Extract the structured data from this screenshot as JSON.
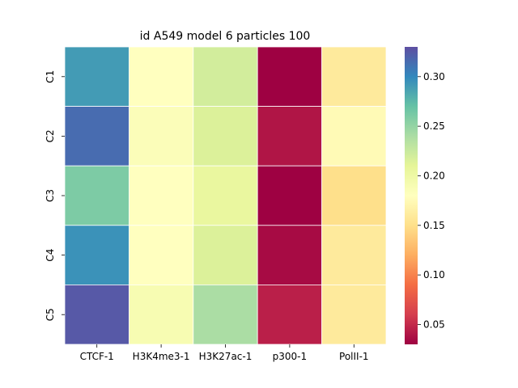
{
  "chart_data": {
    "type": "heatmap",
    "title": "id A549 model 6 particles 100",
    "xlabel": "",
    "ylabel": "",
    "x_categories": [
      "CTCF-1",
      "H3K4me3-1",
      "H3K27ac-1",
      "p300-1",
      "PolII-1"
    ],
    "y_categories": [
      "C1",
      "C2",
      "C3",
      "C4",
      "C5"
    ],
    "values": [
      [
        0.29,
        0.18,
        0.22,
        0.03,
        0.16
      ],
      [
        0.315,
        0.185,
        0.215,
        0.04,
        0.175
      ],
      [
        0.26,
        0.18,
        0.205,
        0.03,
        0.15
      ],
      [
        0.295,
        0.18,
        0.215,
        0.035,
        0.16
      ],
      [
        0.325,
        0.19,
        0.24,
        0.045,
        0.16
      ]
    ],
    "colormap": "Spectral",
    "vmin": 0.03,
    "vmax": 0.33,
    "colorbar": {
      "ticks": [
        0.05,
        0.1,
        0.15,
        0.2,
        0.25,
        0.3
      ],
      "tick_labels": [
        "0.05",
        "0.10",
        "0.15",
        "0.20",
        "0.25",
        "0.30"
      ]
    },
    "cell_border_color": "#ffffff",
    "grid": false,
    "legend": "colorbar-right"
  }
}
